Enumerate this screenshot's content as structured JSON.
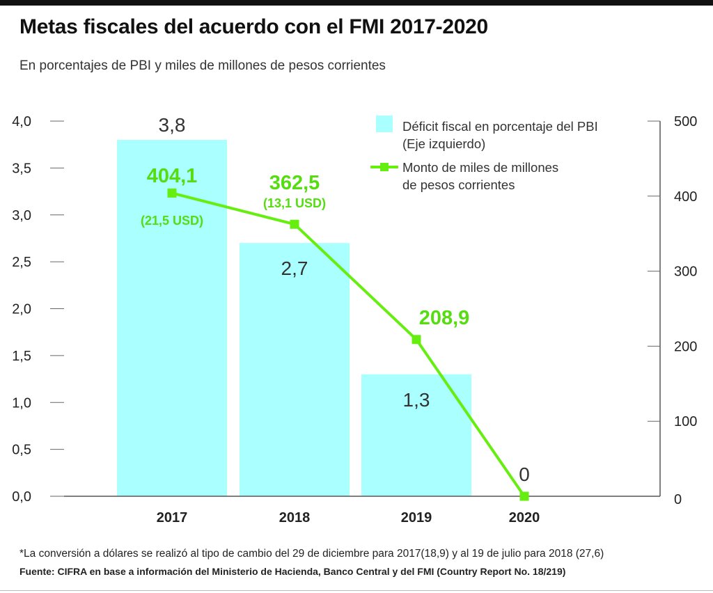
{
  "title": "Metas fiscales del acuerdo con el FMI 2017-2020",
  "subtitle": "En porcentajes de PBI y miles de millones de pesos corrientes",
  "footnote": "*La conversión a dólares se realizó al tipo de cambio del 29 de diciembre para 2017(18,9) y al 19 de julio para 2018 (27,6)",
  "source_label": "Fuente:",
  "source_text": "CIFRA en base a información del Ministerio de Hacienda, Banco Central y del FMI (Country Report No. 18/219)",
  "chart_data": {
    "type": "bar",
    "categories": [
      "2017",
      "2018",
      "2019",
      "2020"
    ],
    "bar_series": {
      "name": "Déficit fiscal en porcentaje del PBI (Eje izquierdo)",
      "legend_line1": "Déficit fiscal en porcentaje del PBI",
      "legend_line2": "(Eje izquierdo)",
      "values": [
        3.8,
        2.7,
        1.3,
        0
      ],
      "labels": [
        "3,8",
        "2,7",
        "1,3",
        "0"
      ],
      "color": "#aaffff"
    },
    "line_series": {
      "name": "Monto de miles de millones de pesos corrientes",
      "legend_line1": "Monto de miles de millones",
      "legend_line2": "de pesos corrientes",
      "values": [
        404.1,
        362.5,
        208.9,
        0
      ],
      "labels": [
        "404,1",
        "362,5",
        "208,9",
        ""
      ],
      "usd_labels": [
        "(21,5 USD)",
        "(13,1 USD)",
        "",
        ""
      ],
      "color": "#66ee11"
    },
    "y_left": {
      "lim": [
        0,
        4.0
      ],
      "ticks": [
        0,
        0.5,
        1.0,
        1.5,
        2.0,
        2.5,
        3.0,
        3.5,
        4.0
      ],
      "tick_labels": [
        "0,0",
        "0,5",
        "1,0",
        "1,5",
        "2,0",
        "2,5",
        "3,0",
        "3,5",
        "4,0"
      ]
    },
    "y_right": {
      "lim": [
        0,
        500
      ],
      "ticks": [
        0,
        100,
        200,
        300,
        400,
        500
      ],
      "tick_labels": [
        "0",
        "100",
        "200",
        "300",
        "400",
        "500"
      ]
    },
    "legend_position": "top-right",
    "grid": false
  }
}
